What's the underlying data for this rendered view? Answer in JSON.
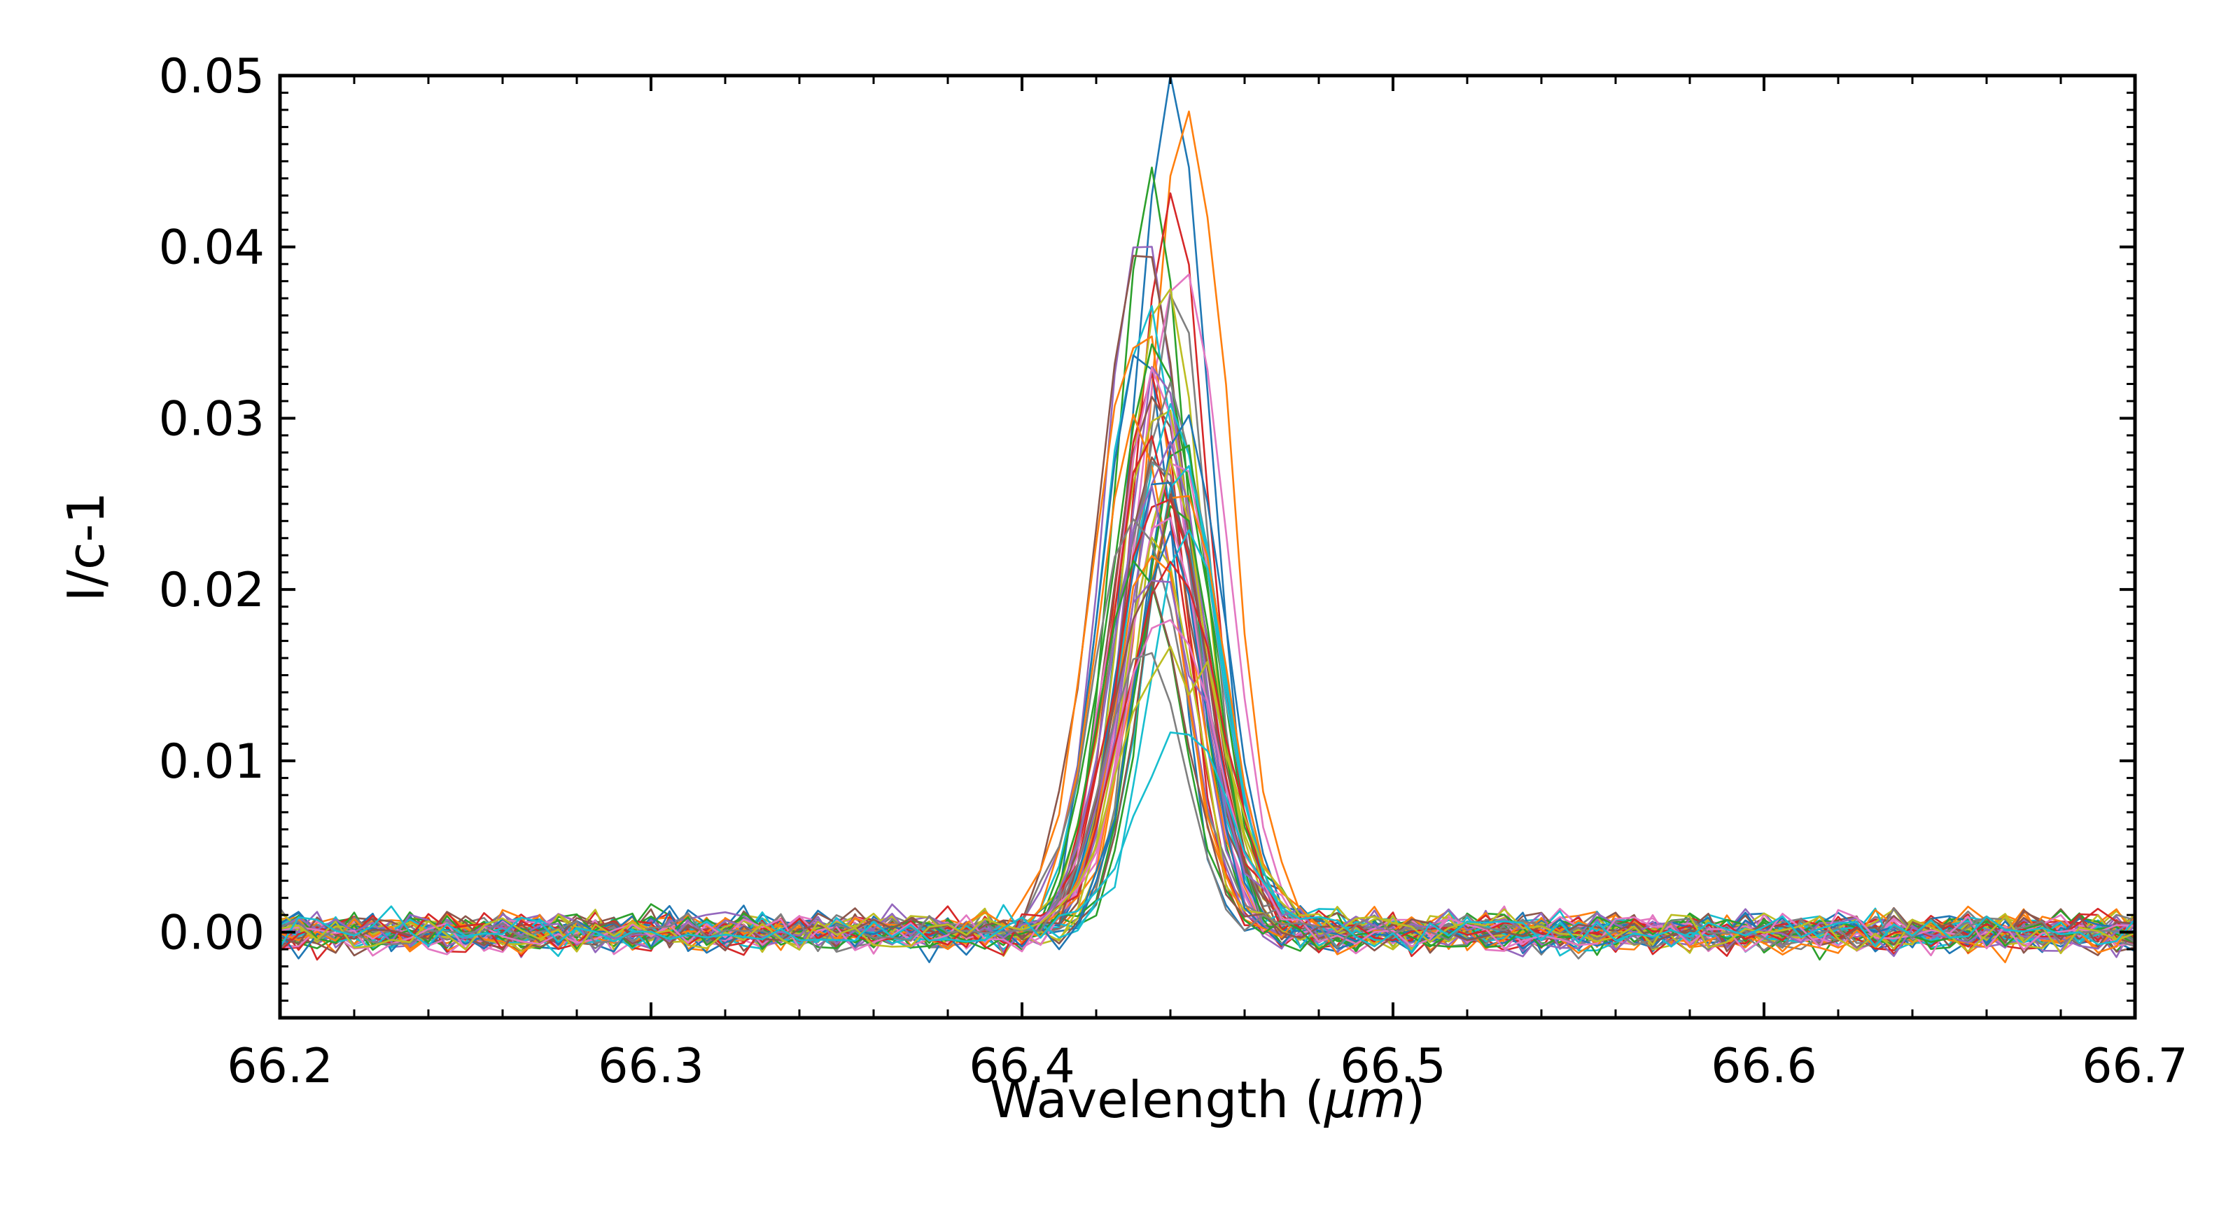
{
  "chart_data": {
    "type": "line",
    "title": "",
    "xlabel_text": "Wavelength (",
    "xlabel_unit": "μm",
    "xlabel_close": ")",
    "ylabel": "I/c-1",
    "xlim": [
      66.2,
      66.7
    ],
    "ylim": [
      -0.005,
      0.05
    ],
    "x_ticks": [
      "66.2",
      "66.3",
      "66.4",
      "66.5",
      "66.6",
      "66.7"
    ],
    "y_ticks": [
      "0.00",
      "0.01",
      "0.02",
      "0.03",
      "0.04",
      "0.05"
    ],
    "grid": false,
    "legend": "none",
    "x_range": {
      "start": 66.2,
      "stop": 66.7,
      "step": 0.005
    },
    "noise_amplitude": 0.0011,
    "line_profile": {
      "center_mean": 66.438,
      "fwhm_approx": 0.025
    },
    "series_count": 50,
    "series_peaks": [
      0.05,
      0.048,
      0.044,
      0.043,
      0.041,
      0.04,
      0.039,
      0.038,
      0.037,
      0.036,
      0.035,
      0.035,
      0.034,
      0.033,
      0.033,
      0.032,
      0.032,
      0.031,
      0.031,
      0.03,
      0.03,
      0.03,
      0.029,
      0.029,
      0.029,
      0.028,
      0.028,
      0.028,
      0.027,
      0.027,
      0.027,
      0.026,
      0.026,
      0.026,
      0.025,
      0.025,
      0.025,
      0.024,
      0.024,
      0.024,
      0.023,
      0.023,
      0.022,
      0.022,
      0.021,
      0.02,
      0.019,
      0.017,
      0.016,
      0.012
    ],
    "colors": [
      "#1f77b4",
      "#ff7f0e",
      "#2ca02c",
      "#d62728",
      "#9467bd",
      "#8c564b",
      "#e377c2",
      "#7f7f7f",
      "#bcbd22",
      "#17becf"
    ]
  }
}
